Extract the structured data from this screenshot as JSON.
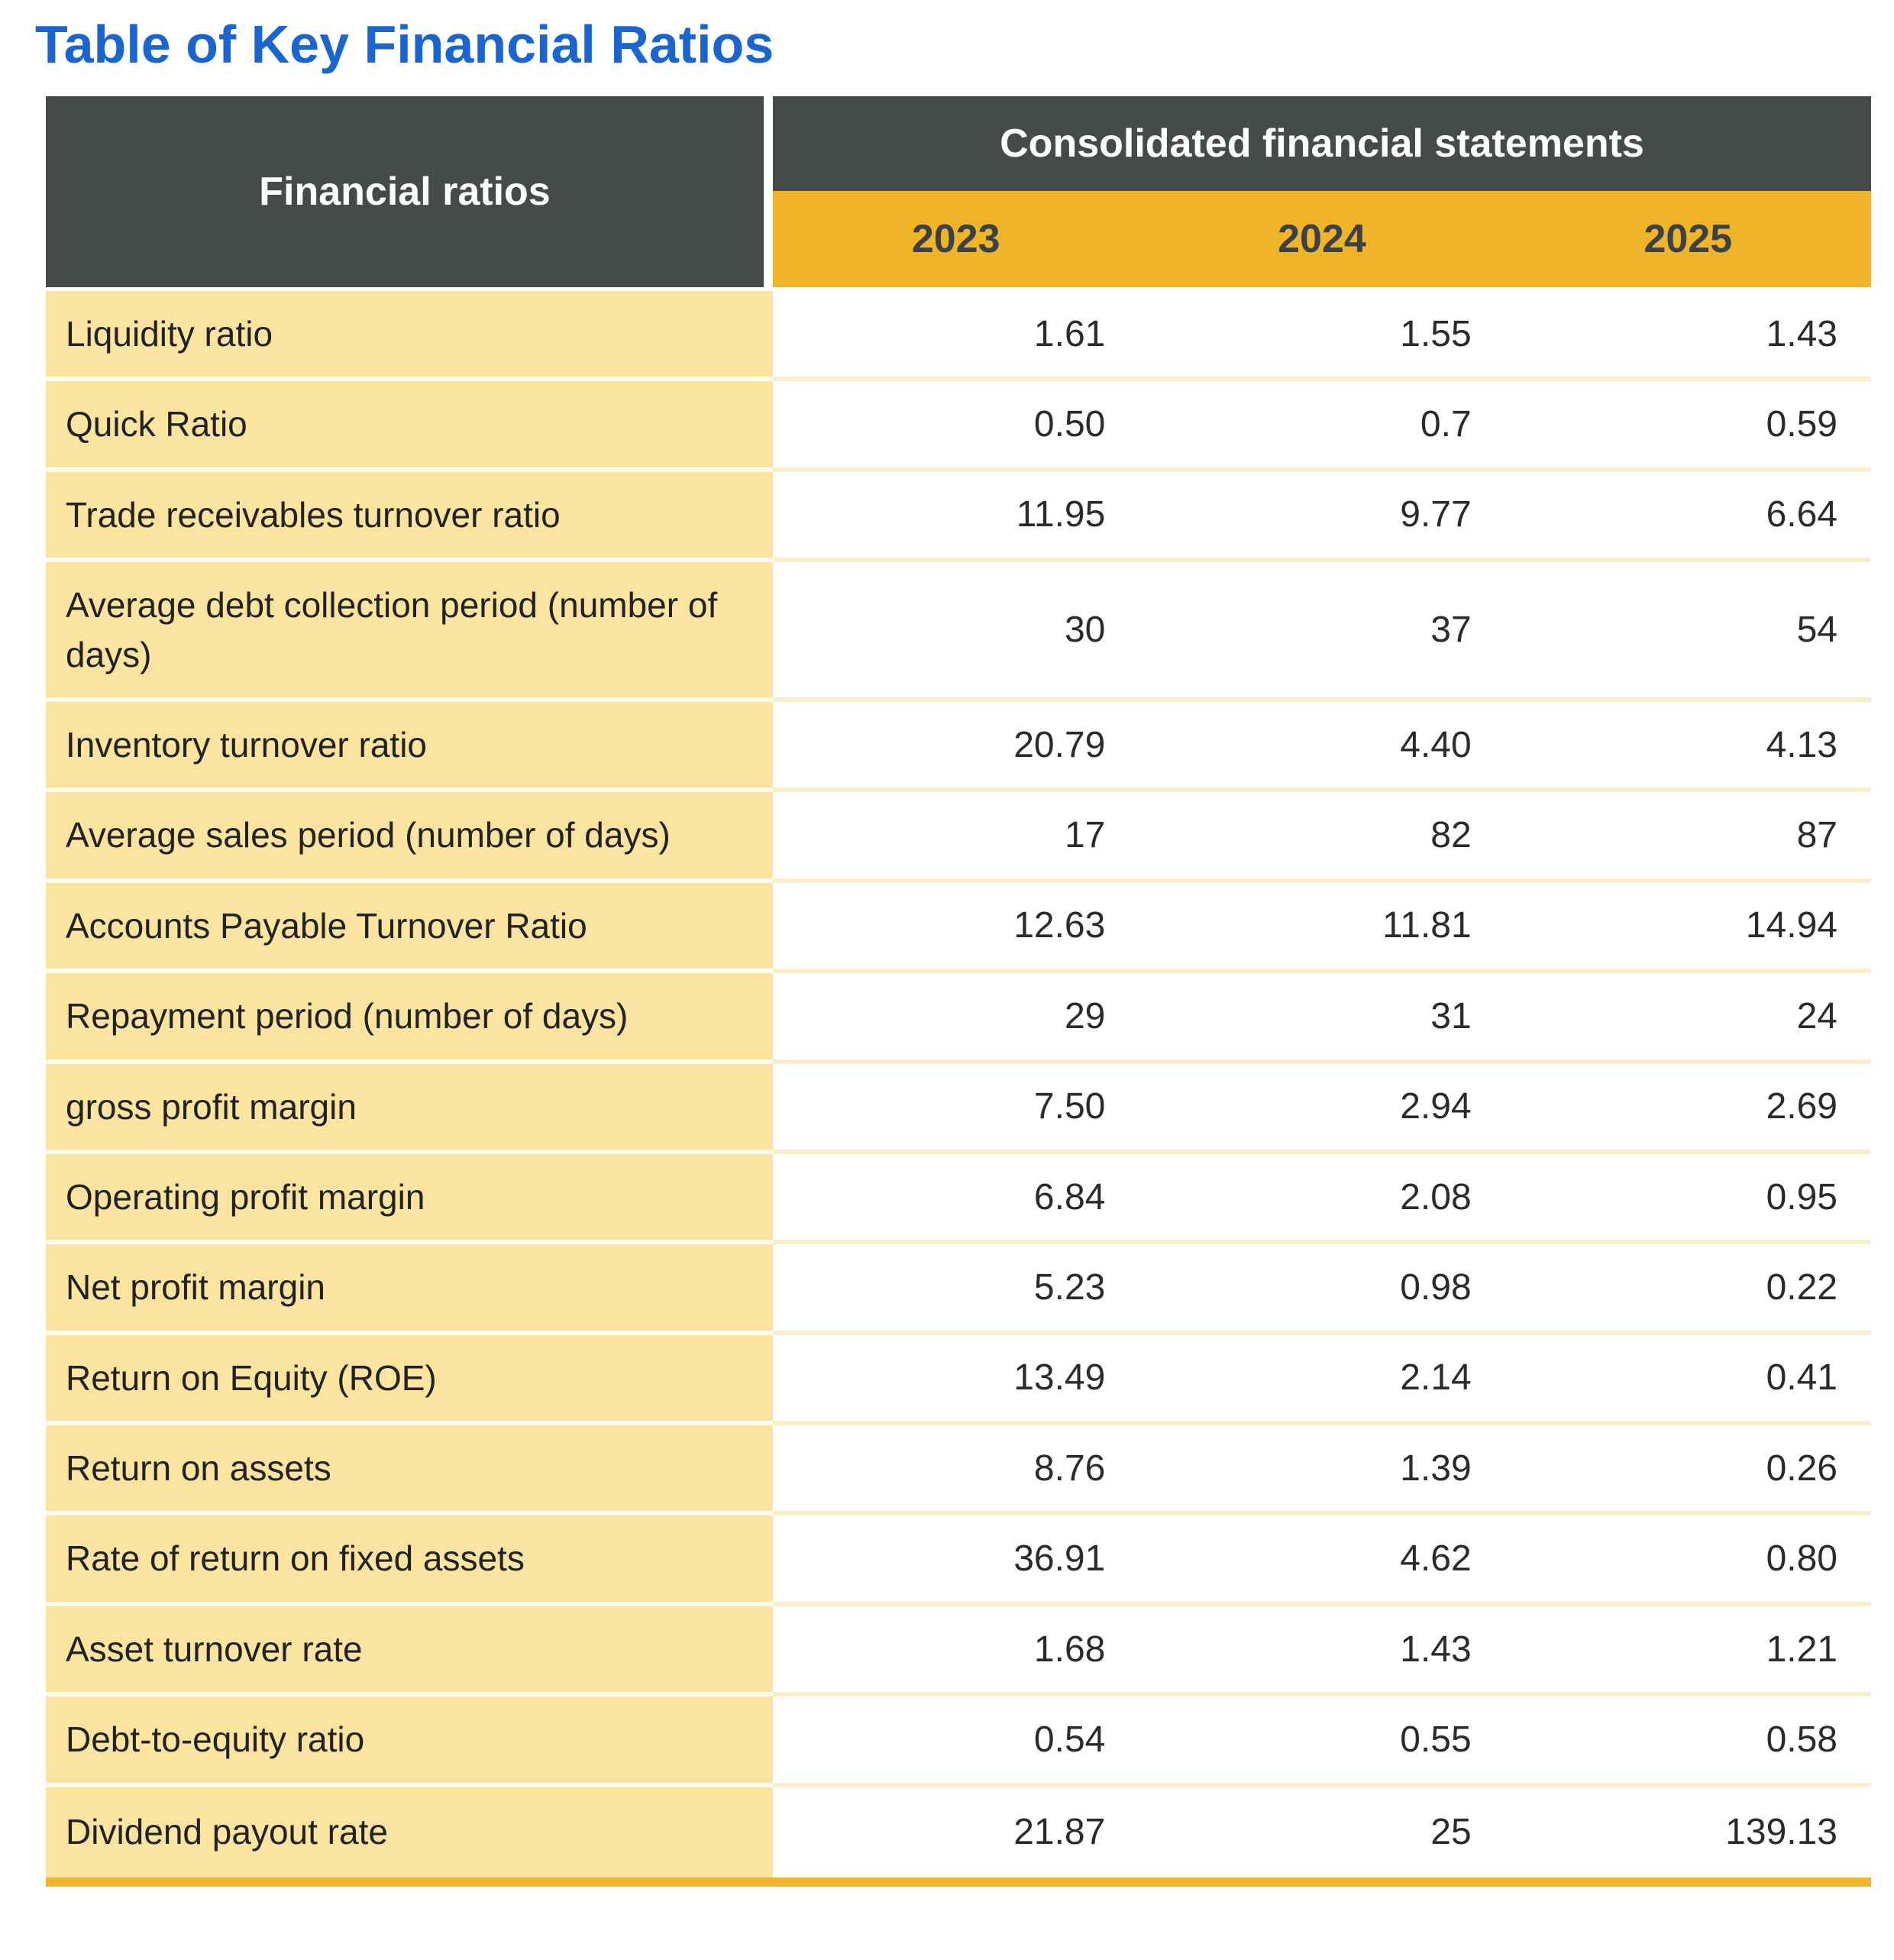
{
  "title": "Table of Key Financial Ratios",
  "colors": {
    "title_blue": "#1966D2",
    "header_dark": "#454B4A",
    "accent_gold": "#F0B428",
    "label_yellow": "#FBE3A0",
    "bottom_border_gold": "#EEB62D"
  },
  "table": {
    "corner_header": "Financial ratios",
    "group_header": "Consolidated financial statements",
    "years": [
      "2023",
      "2024",
      "2025"
    ],
    "rows": [
      {
        "label": "Liquidity ratio",
        "values": [
          "1.61",
          "1.55",
          "1.43"
        ]
      },
      {
        "label": "Quick Ratio",
        "values": [
          "0.50",
          "0.7",
          "0.59"
        ]
      },
      {
        "label": "Trade receivables turnover ratio",
        "values": [
          "11.95",
          "9.77",
          "6.64"
        ]
      },
      {
        "label": "Average debt collection period (number of days)",
        "values": [
          "30",
          "37",
          "54"
        ]
      },
      {
        "label": "Inventory turnover ratio",
        "values": [
          "20.79",
          "4.40",
          "4.13"
        ]
      },
      {
        "label": "Average sales period (number of days)",
        "values": [
          "17",
          "82",
          "87"
        ]
      },
      {
        "label": "Accounts Payable Turnover Ratio",
        "values": [
          "12.63",
          "11.81",
          "14.94"
        ]
      },
      {
        "label": "Repayment period (number of days)",
        "values": [
          "29",
          "31",
          "24"
        ]
      },
      {
        "label": "gross profit margin",
        "values": [
          "7.50",
          "2.94",
          "2.69"
        ]
      },
      {
        "label": "Operating profit margin",
        "values": [
          "6.84",
          "2.08",
          "0.95"
        ]
      },
      {
        "label": "Net profit margin",
        "values": [
          "5.23",
          "0.98",
          "0.22"
        ]
      },
      {
        "label": "Return on Equity (ROE)",
        "values": [
          "13.49",
          "2.14",
          "0.41"
        ]
      },
      {
        "label": "Return on assets",
        "values": [
          "8.76",
          "1.39",
          "0.26"
        ]
      },
      {
        "label": "Rate of return on fixed assets",
        "values": [
          "36.91",
          "4.62",
          "0.80"
        ]
      },
      {
        "label": "Asset turnover rate",
        "values": [
          "1.68",
          "1.43",
          "1.21"
        ]
      },
      {
        "label": "Debt-to-equity ratio",
        "values": [
          "0.54",
          "0.55",
          "0.58"
        ]
      },
      {
        "label": "Dividend payout rate",
        "values": [
          "21.87",
          "25",
          "139.13"
        ]
      }
    ]
  }
}
